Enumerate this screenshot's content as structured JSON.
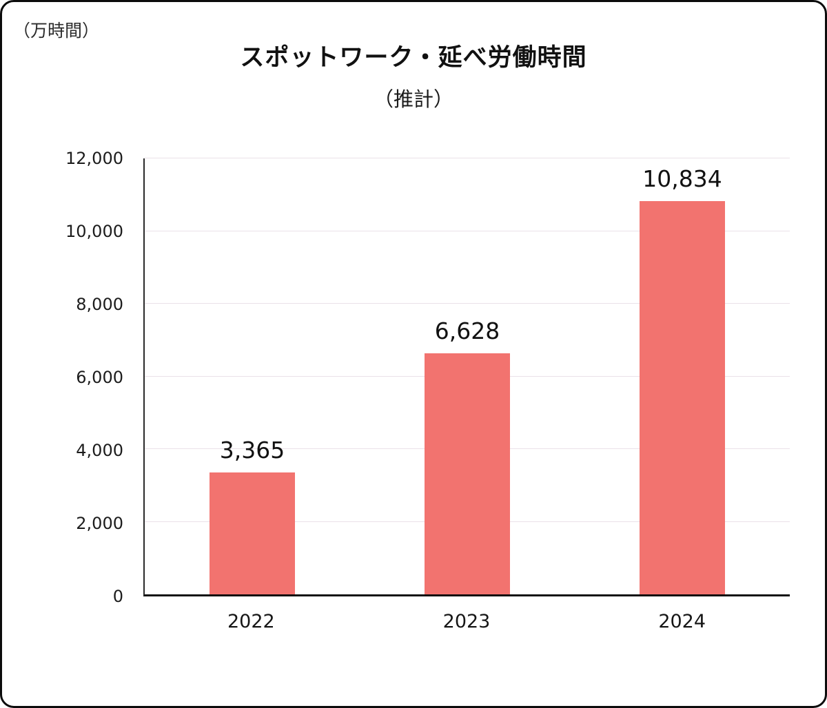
{
  "chart_data": {
    "type": "bar",
    "title": "スポットワーク・延べ労働時間",
    "subtitle": "（推計）",
    "unit_label": "（万時間）",
    "categories": [
      "2022",
      "2023",
      "2024"
    ],
    "values": [
      3365,
      6628,
      10834
    ],
    "value_labels": [
      "3,365",
      "6,628",
      "10,834"
    ],
    "xlabel": "",
    "ylabel": "",
    "ylim": [
      0,
      12000
    ],
    "yticks": [
      {
        "value": 0,
        "label": "0"
      },
      {
        "value": 2000,
        "label": "2,000"
      },
      {
        "value": 4000,
        "label": "4,000"
      },
      {
        "value": 6000,
        "label": "6,000"
      },
      {
        "value": 8000,
        "label": "8,000"
      },
      {
        "value": 10000,
        "label": "10,000"
      },
      {
        "value": 12000,
        "label": "12,000"
      }
    ],
    "grid": true,
    "legend": "none",
    "bar_color": "#F2736F",
    "gridline_color": "#EAE1E8"
  }
}
